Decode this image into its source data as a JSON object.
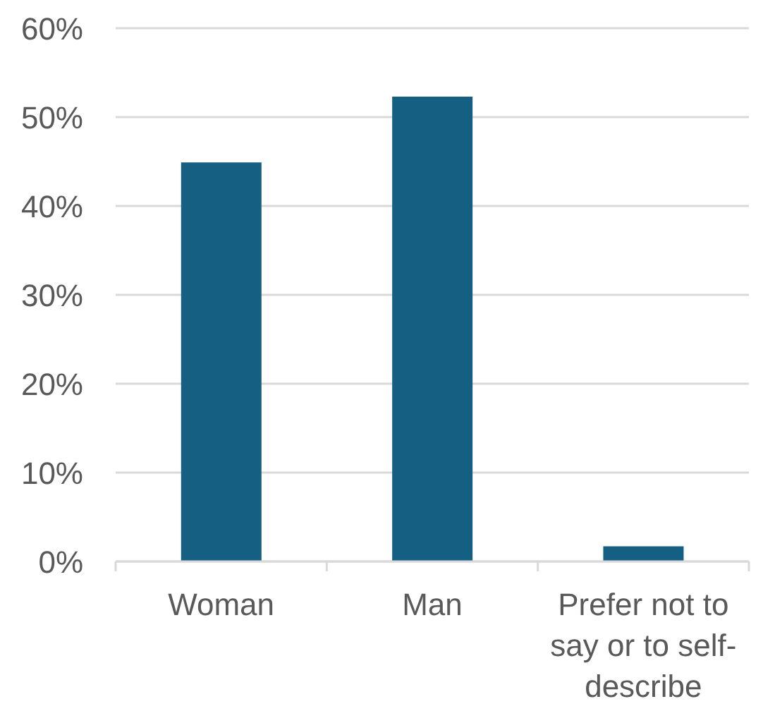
{
  "chart_data": {
    "type": "bar",
    "categories": [
      "Woman",
      "Man",
      "Prefer not to say or to self-describe"
    ],
    "values": [
      44.9,
      52.3,
      1.7
    ],
    "color": "#156082",
    "ylim": [
      0,
      60
    ],
    "yticks": [
      {
        "value": 0,
        "label": "0%"
      },
      {
        "value": 10,
        "label": "10%"
      },
      {
        "value": 20,
        "label": "20%"
      },
      {
        "value": 30,
        "label": "30%"
      },
      {
        "value": 40,
        "label": "40%"
      },
      {
        "value": 50,
        "label": "50%"
      },
      {
        "value": 60,
        "label": "60%"
      }
    ],
    "grid": "y"
  }
}
